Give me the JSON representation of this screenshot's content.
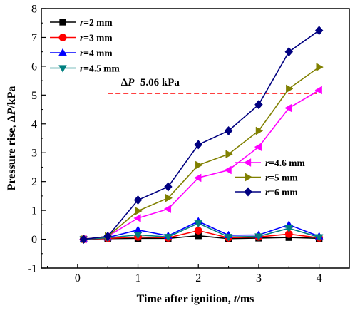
{
  "chart_data": {
    "type": "line",
    "title": "",
    "xlabel": "Time after ignition, t/ms",
    "ylabel": "Pressure rise, ΔP/kPa",
    "xlim": [
      -0.6,
      4.5
    ],
    "ylim": [
      -1,
      8
    ],
    "x_ticks": [
      0,
      1,
      2,
      3,
      4
    ],
    "y_ticks": [
      -1,
      0,
      1,
      2,
      3,
      4,
      5,
      6,
      7,
      8
    ],
    "x_tick_labels": [
      "0",
      "1",
      "2",
      "3",
      "4"
    ],
    "y_tick_labels": [
      "-1",
      "0",
      "1",
      "2",
      "3",
      "4",
      "5",
      "6",
      "7",
      "8"
    ],
    "x": [
      0.1,
      0.5,
      1.0,
      1.5,
      2.0,
      2.5,
      3.0,
      3.5,
      4.0
    ],
    "series": [
      {
        "name": "r=2 mm",
        "prefix": "r",
        "suffix": "=2 mm",
        "marker": "square",
        "color": "#000000",
        "values": [
          0,
          0.02,
          0.03,
          0.03,
          0.12,
          0.02,
          0.04,
          0.06,
          0.03
        ]
      },
      {
        "name": "r=3 mm",
        "prefix": "r",
        "suffix": "=3 mm",
        "marker": "circle",
        "color": "#ff0000",
        "values": [
          0,
          0.03,
          0.08,
          0.05,
          0.3,
          0.05,
          0.08,
          0.18,
          0.05
        ]
      },
      {
        "name": "r=4 mm",
        "prefix": "r",
        "suffix": "=4 mm",
        "marker": "triangle-up",
        "color": "#0000ff",
        "values": [
          0,
          0.06,
          0.32,
          0.12,
          0.62,
          0.14,
          0.15,
          0.5,
          0.1
        ]
      },
      {
        "name": "r=4.5 mm",
        "prefix": "r",
        "suffix": "=4.5 mm",
        "marker": "triangle-down",
        "color": "#008080",
        "values": [
          0,
          0.05,
          0.15,
          0.08,
          0.55,
          0.08,
          0.1,
          0.38,
          0.07
        ]
      },
      {
        "name": "r=4.6 mm",
        "prefix": "r",
        "suffix": "=4.6 mm",
        "marker": "triangle-left",
        "color": "#ff00ff",
        "values": [
          0,
          0.1,
          0.73,
          1.05,
          2.13,
          2.4,
          3.2,
          4.55,
          5.17
        ]
      },
      {
        "name": "r=5 mm",
        "prefix": "r",
        "suffix": "=5 mm",
        "marker": "triangle-right",
        "color": "#808000",
        "values": [
          0,
          0.1,
          0.98,
          1.43,
          2.57,
          2.95,
          3.76,
          5.22,
          5.97
        ]
      },
      {
        "name": "r=6 mm",
        "prefix": "r",
        "suffix": "=6 mm",
        "marker": "diamond",
        "color": "#000080",
        "values": [
          0,
          0.1,
          1.36,
          1.82,
          3.28,
          3.76,
          4.67,
          6.5,
          7.24
        ]
      }
    ],
    "reference_line": {
      "y": 5.06,
      "x_range": [
        0.5,
        4.0
      ],
      "color": "#ff0000",
      "style": "dashed",
      "label_prefix": "ΔP",
      "label_suffix": "=5.06 kPa"
    },
    "grid": false,
    "legends": [
      {
        "placement": "top-left",
        "series": [
          "r=2 mm",
          "r=3 mm",
          "r=4 mm",
          "r=4.5 mm"
        ]
      },
      {
        "placement": "middle-right",
        "series": [
          "r=4.6 mm",
          "r=5 mm",
          "r=6 mm"
        ]
      }
    ]
  }
}
